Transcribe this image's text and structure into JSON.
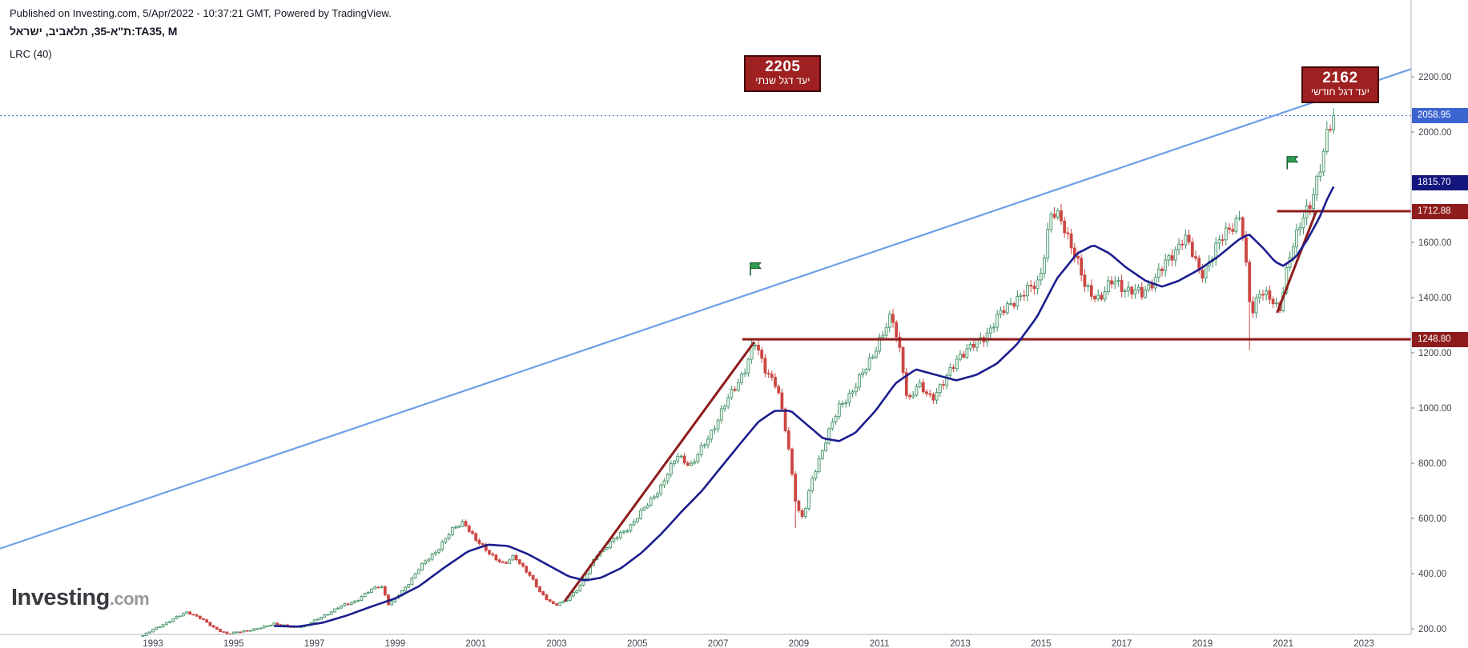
{
  "header": {
    "published": "Published on Investing.com, 5/Apr/2022 - 10:37:21 GMT, Powered by TradingView.",
    "symbol_line": "ת\"א-35, תלאביב, ישראל:TA35, M",
    "indicator": "LRC (40)"
  },
  "logo": {
    "name": "Investing",
    "tld": ".com"
  },
  "colors": {
    "up": "#3d8f62",
    "up_fill": "#e9f3ec",
    "down": "#cc4743",
    "down_fill": "#cc4743",
    "ma": "#1b1d8f",
    "trend": "#6e9fe8",
    "level": "#8e1c1c",
    "badge_price": "#3c64d0",
    "badge_ma": "#15157e",
    "badge_level": "#8e1c1c",
    "flag": "#2f9e50",
    "axis_text": "#42464e"
  },
  "axis": {
    "badges": [
      {
        "label": "2058.95",
        "value": 2058.95,
        "type": "price"
      },
      {
        "label": "1815.70",
        "value": 1815.7,
        "type": "ma"
      },
      {
        "label": "1712.88",
        "value": 1712.88,
        "type": "level"
      },
      {
        "label": "1248.80",
        "value": 1248.8,
        "type": "level"
      }
    ]
  },
  "annotations": [
    {
      "title": "2205",
      "subtitle": "יעד דגל שנתי",
      "year": 2007.65,
      "value": 2278
    },
    {
      "title": "2162",
      "subtitle": "יעד דגל חודשי",
      "year": 2021.45,
      "value": 2237
    }
  ],
  "flags": [
    {
      "year": 2007.8,
      "value": 1480
    },
    {
      "year": 2021.1,
      "value": 1865
    }
  ],
  "chart_data": {
    "type": "candlestick",
    "title": "TA35 Monthly with LRC (40)",
    "symbol": "TA35",
    "timeframe": "M",
    "last_price": 2058.95,
    "ma_last": 1815.7,
    "levels": [
      1248.8,
      1712.88
    ],
    "targets": [
      2205,
      2162
    ],
    "x_domain_years": [
      1989.2,
      2024.17
    ],
    "y_ticks": [
      "2200.00",
      "2000.00",
      "1600.00",
      "1400.00",
      "1200.00",
      "1000.00",
      "800.00",
      "600.00",
      "400.00",
      "200.00"
    ],
    "x_ticks": [
      "1993",
      "1995",
      "1997",
      "1999",
      "2001",
      "2003",
      "2005",
      "2007",
      "2009",
      "2011",
      "2013",
      "2015",
      "2017",
      "2019",
      "2021",
      "2023"
    ],
    "candle_range": [
      1992.75,
      2022.3
    ],
    "price_path": [
      [
        1992.75,
        175
      ],
      [
        1993.1,
        205
      ],
      [
        1993.5,
        235
      ],
      [
        1993.85,
        262
      ],
      [
        1994.15,
        240
      ],
      [
        1994.5,
        205
      ],
      [
        1994.85,
        180
      ],
      [
        1995.2,
        192
      ],
      [
        1995.6,
        200
      ],
      [
        1996.0,
        220
      ],
      [
        1996.4,
        205
      ],
      [
        1996.8,
        212
      ],
      [
        1997.2,
        245
      ],
      [
        1997.6,
        278
      ],
      [
        1998.0,
        300
      ],
      [
        1998.4,
        340
      ],
      [
        1998.65,
        360
      ],
      [
        1998.85,
        285
      ],
      [
        1999.2,
        340
      ],
      [
        1999.6,
        420
      ],
      [
        2000.0,
        480
      ],
      [
        2000.4,
        555
      ],
      [
        2000.7,
        590
      ],
      [
        2001.0,
        520
      ],
      [
        2001.3,
        480
      ],
      [
        2001.7,
        430
      ],
      [
        2001.95,
        465
      ],
      [
        2002.3,
        400
      ],
      [
        2002.6,
        330
      ],
      [
        2002.95,
        285
      ],
      [
        2003.2,
        298
      ],
      [
        2003.6,
        360
      ],
      [
        2004.0,
        470
      ],
      [
        2004.4,
        520
      ],
      [
        2004.8,
        570
      ],
      [
        2005.2,
        640
      ],
      [
        2005.6,
        720
      ],
      [
        2006.0,
        830
      ],
      [
        2006.35,
        790
      ],
      [
        2006.7,
        880
      ],
      [
        2007.0,
        960
      ],
      [
        2007.35,
        1060
      ],
      [
        2007.7,
        1150
      ],
      [
        2007.9,
        1238
      ],
      [
        2008.15,
        1150
      ],
      [
        2008.45,
        1080
      ],
      [
        2008.7,
        900
      ],
      [
        2008.95,
        640
      ],
      [
        2009.1,
        600
      ],
      [
        2009.35,
        750
      ],
      [
        2009.7,
        900
      ],
      [
        2010.0,
        1000
      ],
      [
        2010.35,
        1070
      ],
      [
        2010.7,
        1150
      ],
      [
        2011.0,
        1250
      ],
      [
        2011.3,
        1330
      ],
      [
        2011.55,
        1180
      ],
      [
        2011.7,
        1020
      ],
      [
        2011.95,
        1080
      ],
      [
        2012.3,
        1040
      ],
      [
        2012.6,
        1090
      ],
      [
        2012.95,
        1190
      ],
      [
        2013.3,
        1220
      ],
      [
        2013.65,
        1270
      ],
      [
        2013.95,
        1330
      ],
      [
        2014.3,
        1390
      ],
      [
        2014.65,
        1420
      ],
      [
        2014.95,
        1460
      ],
      [
        2015.25,
        1700
      ],
      [
        2015.5,
        1680
      ],
      [
        2015.8,
        1580
      ],
      [
        2016.1,
        1430
      ],
      [
        2016.45,
        1400
      ],
      [
        2016.8,
        1460
      ],
      [
        2017.15,
        1430
      ],
      [
        2017.5,
        1410
      ],
      [
        2017.85,
        1480
      ],
      [
        2018.2,
        1540
      ],
      [
        2018.55,
        1630
      ],
      [
        2018.95,
        1480
      ],
      [
        2019.3,
        1570
      ],
      [
        2019.65,
        1650
      ],
      [
        2019.95,
        1700
      ],
      [
        2020.2,
        1330
      ],
      [
        2020.45,
        1440
      ],
      [
        2020.7,
        1390
      ],
      [
        2020.9,
        1340
      ],
      [
        2021.15,
        1560
      ],
      [
        2021.4,
        1650
      ],
      [
        2021.65,
        1730
      ],
      [
        2021.9,
        1870
      ],
      [
        2022.1,
        1990
      ],
      [
        2022.3,
        2059
      ]
    ],
    "ma_path": [
      [
        1996.0,
        210
      ],
      [
        1996.6,
        208
      ],
      [
        1997.2,
        222
      ],
      [
        1997.8,
        248
      ],
      [
        1998.4,
        280
      ],
      [
        1999.0,
        310
      ],
      [
        1999.6,
        355
      ],
      [
        2000.2,
        420
      ],
      [
        2000.8,
        480
      ],
      [
        2001.3,
        505
      ],
      [
        2001.8,
        500
      ],
      [
        2002.3,
        470
      ],
      [
        2002.8,
        430
      ],
      [
        2003.3,
        390
      ],
      [
        2003.7,
        375
      ],
      [
        2004.1,
        385
      ],
      [
        2004.6,
        420
      ],
      [
        2005.1,
        475
      ],
      [
        2005.6,
        545
      ],
      [
        2006.1,
        625
      ],
      [
        2006.6,
        700
      ],
      [
        2007.1,
        790
      ],
      [
        2007.6,
        880
      ],
      [
        2008.0,
        950
      ],
      [
        2008.4,
        990
      ],
      [
        2008.8,
        990
      ],
      [
        2009.2,
        940
      ],
      [
        2009.6,
        890
      ],
      [
        2010.0,
        880
      ],
      [
        2010.4,
        910
      ],
      [
        2010.9,
        990
      ],
      [
        2011.4,
        1090
      ],
      [
        2011.9,
        1140
      ],
      [
        2012.4,
        1120
      ],
      [
        2012.9,
        1100
      ],
      [
        2013.4,
        1120
      ],
      [
        2013.9,
        1160
      ],
      [
        2014.4,
        1230
      ],
      [
        2014.9,
        1330
      ],
      [
        2015.4,
        1470
      ],
      [
        2015.9,
        1560
      ],
      [
        2016.3,
        1590
      ],
      [
        2016.7,
        1560
      ],
      [
        2017.1,
        1510
      ],
      [
        2017.6,
        1460
      ],
      [
        2018.0,
        1440
      ],
      [
        2018.4,
        1460
      ],
      [
        2018.9,
        1500
      ],
      [
        2019.4,
        1550
      ],
      [
        2019.9,
        1610
      ],
      [
        2020.15,
        1630
      ],
      [
        2020.5,
        1580
      ],
      [
        2020.8,
        1530
      ],
      [
        2021.0,
        1515
      ],
      [
        2021.3,
        1545
      ],
      [
        2021.6,
        1610
      ],
      [
        2021.9,
        1690
      ],
      [
        2022.1,
        1760
      ],
      [
        2022.3,
        1816
      ]
    ],
    "trendline": {
      "x1": 1989.2,
      "v1": 490,
      "x2": 2024.17,
      "v2": 2228
    },
    "red_lines": [
      [
        2003.2,
        300,
        2007.9,
        1240
      ],
      [
        2007.6,
        1248.8,
        2024.17,
        1248.8
      ],
      [
        2020.85,
        1712.88,
        2024.17,
        1712.88
      ],
      [
        2020.85,
        1345,
        2021.82,
        1712.88
      ]
    ],
    "events": [
      {
        "year": 2020.17,
        "low": 1210
      },
      {
        "year": 2008.92,
        "low": 565
      }
    ]
  }
}
